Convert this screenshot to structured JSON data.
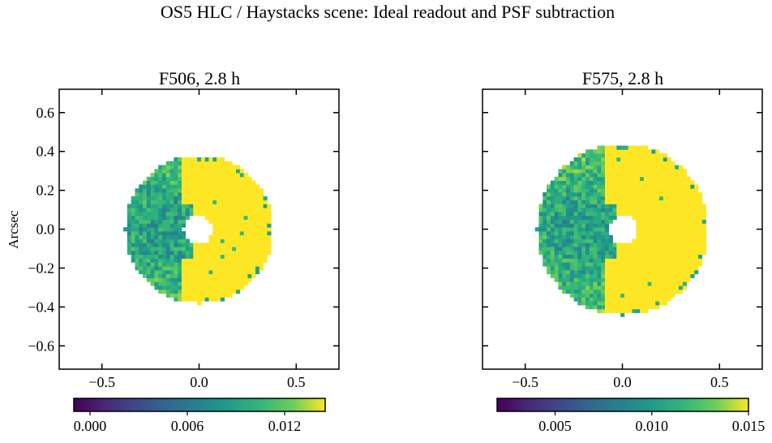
{
  "figure": {
    "title": "OS5 HLC / Haystacks scene: Ideal readout and PSF subtraction"
  },
  "chart_data": [
    {
      "type": "heatmap",
      "title": "F506, 2.8 h",
      "xlabel": "",
      "ylabel": "Arcsec",
      "xlim": [
        -0.72,
        0.72
      ],
      "ylim": [
        -0.72,
        0.72
      ],
      "x_ticks": [
        -0.5,
        0.0,
        0.5
      ],
      "x_tick_labels": [
        "−0.5",
        "0.0",
        "0.5"
      ],
      "y_ticks": [
        -0.6,
        -0.4,
        -0.2,
        0.0,
        0.2,
        0.4,
        0.6
      ],
      "y_tick_labels": [
        "−0.6",
        "−0.4",
        "−0.2",
        "0.0",
        "0.2",
        "0.4",
        "0.6"
      ],
      "colormap": "viridis",
      "color_range": [
        -0.001,
        0.0145
      ],
      "colorbar_ticks": [
        0.0,
        0.006,
        0.012
      ],
      "colorbar_tick_labels": [
        "0.000",
        "0.006",
        "0.012"
      ],
      "data_extent": {
        "outer_radius_arcsec": 0.38,
        "inner_radius_arcsec": 0.075,
        "inner_center_arcsec": [
          -0.005,
          0.0
        ],
        "saturated_side": "right",
        "speckle_center_arcsec": [
          -0.17,
          0.0
        ],
        "speckle_value_min": 0.005,
        "saturated_value": 0.0145
      }
    },
    {
      "type": "heatmap",
      "title": "F575, 2.8 h",
      "xlabel": "",
      "ylabel": "",
      "xlim": [
        -0.72,
        0.72
      ],
      "ylim": [
        -0.72,
        0.72
      ],
      "x_ticks": [
        -0.5,
        0.0,
        0.5
      ],
      "x_tick_labels": [
        "−0.5",
        "0.0",
        "0.5"
      ],
      "y_ticks": [
        -0.6,
        -0.4,
        -0.2,
        0.0,
        0.2,
        0.4,
        0.6
      ],
      "y_tick_labels": [
        "",
        "",
        "",
        "",
        "",
        "",
        ""
      ],
      "colormap": "viridis",
      "color_range": [
        0.002,
        0.015
      ],
      "colorbar_ticks": [
        0.005,
        0.01,
        0.015
      ],
      "colorbar_tick_labels": [
        "0.005",
        "0.010",
        "0.015"
      ],
      "data_extent": {
        "outer_radius_arcsec": 0.44,
        "inner_radius_arcsec": 0.075,
        "inner_center_arcsec": [
          0.005,
          0.0
        ],
        "saturated_side": "right",
        "speckle_center_arcsec": [
          -0.2,
          0.0
        ],
        "speckle_value_min": 0.007,
        "saturated_value": 0.015
      }
    }
  ]
}
